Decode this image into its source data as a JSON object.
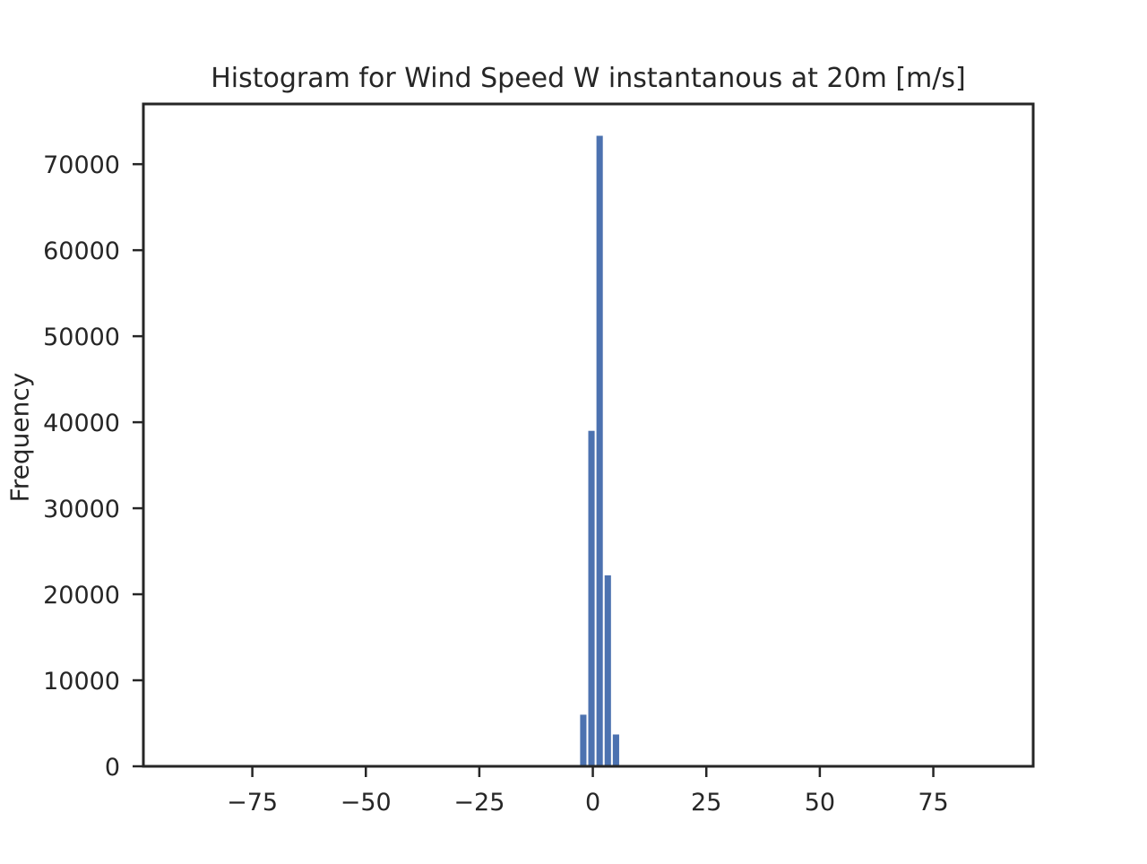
{
  "chart_data": {
    "type": "bar",
    "title": "Histogram for Wind Speed W instantanous at 20m [m/s]",
    "xlabel": "",
    "ylabel": "Frequency",
    "xlim": [
      -99,
      97
    ],
    "ylim": [
      0,
      77000
    ],
    "xticks": [
      -75,
      -50,
      -25,
      0,
      25,
      50,
      75
    ],
    "xtick_labels": [
      "−75",
      "−50",
      "−25",
      "0",
      "25",
      "50",
      "75"
    ],
    "yticks": [
      0,
      10000,
      20000,
      30000,
      40000,
      50000,
      60000,
      70000
    ],
    "ytick_labels": [
      "0",
      "10000",
      "20000",
      "30000",
      "40000",
      "50000",
      "60000",
      "70000"
    ],
    "bar_width": 1.4,
    "bins": [
      {
        "center": -2.1,
        "value": 6000
      },
      {
        "center": -0.3,
        "value": 39000
      },
      {
        "center": 1.5,
        "value": 73300
      },
      {
        "center": 3.3,
        "value": 22200
      },
      {
        "center": 5.1,
        "value": 3700
      }
    ],
    "grid": false,
    "bar_color": "#4c72b0"
  }
}
